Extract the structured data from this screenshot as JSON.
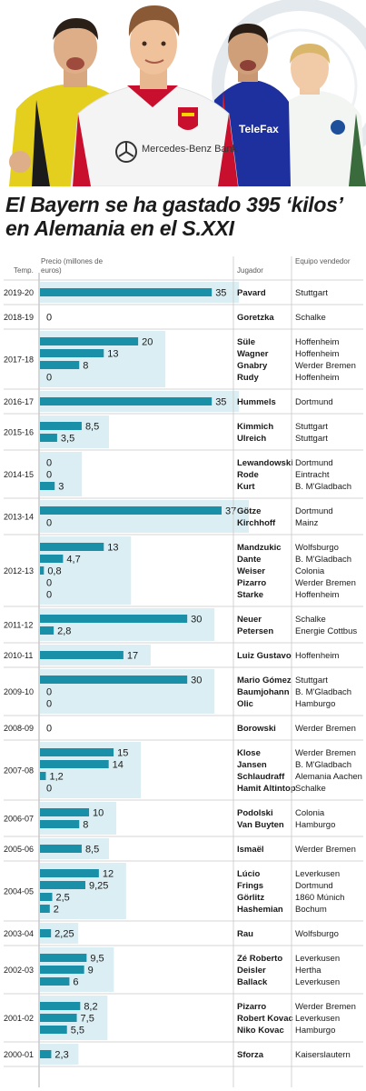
{
  "title": "El Bayern se ha gastado 395 ‘kilos’ en Alemania en el S.XXI",
  "header": {
    "season": "Temp.",
    "price": "Precio (millones de euros)",
    "player": "Jugador",
    "seller": "Equipo vendedor"
  },
  "hero": {
    "shirt_text": "Mercedes-Benz Bank"
  },
  "colors": {
    "bar": "#1a8fa8",
    "band": "#dbeef3",
    "divider": "#c9c9c9"
  },
  "chart_data": {
    "type": "bar",
    "orientation": "horizontal",
    "title": "El Bayern se ha gastado 395 ‘kilos’ en Alemania en el S.XXI",
    "xlabel": "Precio (millones de euros)",
    "xlim": [
      0,
      37
    ],
    "seasons": [
      {
        "season": "2019-20",
        "transfers": [
          {
            "player": "Pavard",
            "label": "35",
            "value": 35,
            "seller": "Stuttgart"
          }
        ]
      },
      {
        "season": "2018-19",
        "transfers": [
          {
            "player": "Goretzka",
            "label": "0",
            "value": 0,
            "seller": "Schalke"
          }
        ]
      },
      {
        "season": "2017-18",
        "transfers": [
          {
            "player": "Süle",
            "label": "20",
            "value": 20,
            "seller": "Hoffenheim"
          },
          {
            "player": "Wagner",
            "label": "13",
            "value": 13,
            "seller": "Hoffenheim"
          },
          {
            "player": "Gnabry",
            "label": "8",
            "value": 8,
            "seller": "Werder Bremen"
          },
          {
            "player": "Rudy",
            "label": "0",
            "value": 0,
            "seller": "Hoffenheim"
          }
        ]
      },
      {
        "season": "2016-17",
        "transfers": [
          {
            "player": "Hummels",
            "label": "35",
            "value": 35,
            "seller": "Dortmund"
          }
        ]
      },
      {
        "season": "2015-16",
        "transfers": [
          {
            "player": "Kimmich",
            "label": "8,5",
            "value": 8.5,
            "seller": "Stuttgart"
          },
          {
            "player": "Ulreich",
            "label": "3,5",
            "value": 3.5,
            "seller": "Stuttgart"
          }
        ]
      },
      {
        "season": "2014-15",
        "transfers": [
          {
            "player": "Lewandowski",
            "label": "0",
            "value": 0,
            "seller": "Dortmund"
          },
          {
            "player": "Rode",
            "label": "0",
            "value": 0,
            "seller": "Eintracht"
          },
          {
            "player": "Kurt",
            "label": "3",
            "value": 3,
            "seller": "B. M'Gladbach"
          }
        ]
      },
      {
        "season": "2013-14",
        "transfers": [
          {
            "player": "Götze",
            "label": "37",
            "value": 37,
            "seller": "Dortmund"
          },
          {
            "player": "Kirchhoff",
            "label": "0",
            "value": 0,
            "seller": "Mainz"
          }
        ]
      },
      {
        "season": "2012-13",
        "transfers": [
          {
            "player": "Mandzukic",
            "label": "13",
            "value": 13,
            "seller": "Wolfsburgo"
          },
          {
            "player": "Dante",
            "label": "4,7",
            "value": 4.7,
            "seller": "B. M'Gladbach"
          },
          {
            "player": "Weiser",
            "label": "0,8",
            "value": 0.8,
            "seller": "Colonia"
          },
          {
            "player": "Pizarro",
            "label": "0",
            "value": 0,
            "seller": "Werder Bremen"
          },
          {
            "player": "Starke",
            "label": "0",
            "value": 0,
            "seller": "Hoffenheim"
          }
        ]
      },
      {
        "season": "2011-12",
        "transfers": [
          {
            "player": "Neuer",
            "label": "30",
            "value": 30,
            "seller": "Schalke"
          },
          {
            "player": "Petersen",
            "label": "2,8",
            "value": 2.8,
            "seller": "Energie Cottbus"
          }
        ]
      },
      {
        "season": "2010-11",
        "transfers": [
          {
            "player": "Luiz Gustavo",
            "label": "17",
            "value": 17,
            "seller": "Hoffenheim"
          }
        ]
      },
      {
        "season": "2009-10",
        "transfers": [
          {
            "player": "Mario Gómez",
            "label": "30",
            "value": 30,
            "seller": "Stuttgart"
          },
          {
            "player": "Baumjohann",
            "label": "0",
            "value": 0,
            "seller": "B. M'Gladbach"
          },
          {
            "player": "Olic",
            "label": "0",
            "value": 0,
            "seller": "Hamburgo"
          }
        ]
      },
      {
        "season": "2008-09",
        "transfers": [
          {
            "player": "Borowski",
            "label": "0",
            "value": 0,
            "seller": "Werder Bremen"
          }
        ]
      },
      {
        "season": "2007-08",
        "transfers": [
          {
            "player": "Klose",
            "label": "15",
            "value": 15,
            "seller": "Werder Bremen"
          },
          {
            "player": "Jansen",
            "label": "14",
            "value": 14,
            "seller": "B. M'Gladbach"
          },
          {
            "player": "Schlaudraff",
            "label": "1,2",
            "value": 1.2,
            "seller": "Alemania Aachen"
          },
          {
            "player": "Hamit Altintop",
            "label": "0",
            "value": 0,
            "seller": "Schalke"
          }
        ]
      },
      {
        "season": "2006-07",
        "transfers": [
          {
            "player": "Podolski",
            "label": "10",
            "value": 10,
            "seller": "Colonia"
          },
          {
            "player": "Van Buyten",
            "label": "8",
            "value": 8,
            "seller": "Hamburgo"
          }
        ]
      },
      {
        "season": "2005-06",
        "transfers": [
          {
            "player": "Ismaël",
            "label": "8,5",
            "value": 8.5,
            "seller": "Werder Bremen"
          }
        ]
      },
      {
        "season": "2004-05",
        "transfers": [
          {
            "player": "Lúcio",
            "label": "12",
            "value": 12,
            "seller": "Leverkusen"
          },
          {
            "player": "Frings",
            "label": "9,25",
            "value": 9.25,
            "seller": "Dortmund"
          },
          {
            "player": "Görlitz",
            "label": "2,5",
            "value": 2.5,
            "seller": "1860 Múnich"
          },
          {
            "player": "Hashemian",
            "label": "2",
            "value": 2,
            "seller": "Bochum"
          }
        ]
      },
      {
        "season": "2003-04",
        "transfers": [
          {
            "player": "Rau",
            "label": "2,25",
            "value": 2.25,
            "seller": "Wolfsburgo"
          }
        ]
      },
      {
        "season": "2002-03",
        "transfers": [
          {
            "player": "Zé Roberto",
            "label": "9,5",
            "value": 9.5,
            "seller": "Leverkusen"
          },
          {
            "player": "Deisler",
            "label": "9",
            "value": 9,
            "seller": "Hertha"
          },
          {
            "player": "Ballack",
            "label": "6",
            "value": 6,
            "seller": "Leverkusen"
          }
        ]
      },
      {
        "season": "2001-02",
        "transfers": [
          {
            "player": "Pizarro",
            "label": "8,2",
            "value": 8.2,
            "seller": "Werder Bremen"
          },
          {
            "player": "Robert Kovac",
            "label": "7,5",
            "value": 7.5,
            "seller": "Leverkusen"
          },
          {
            "player": "Niko Kovac",
            "label": "5,5",
            "value": 5.5,
            "seller": "Hamburgo"
          }
        ]
      },
      {
        "season": "2000-01",
        "transfers": [
          {
            "player": "Sforza",
            "label": "2,3",
            "value": 2.3,
            "seller": "Kaiserslautern"
          }
        ]
      }
    ]
  }
}
